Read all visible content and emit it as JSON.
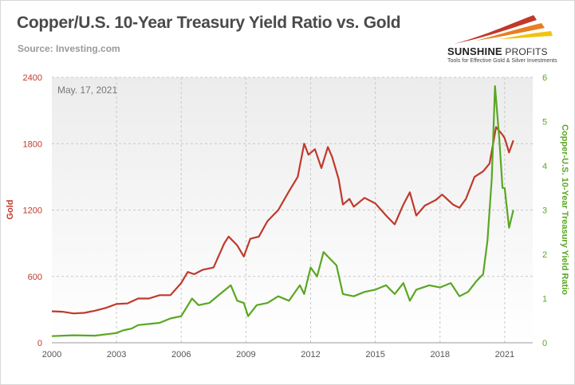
{
  "header": {
    "title": "Copper/U.S. 10-Year Treasury Yield Ratio vs. Gold",
    "source": "Source: Investing.com"
  },
  "logo": {
    "name_part1": "SUNSHINE",
    "name_part2": " PROFITS",
    "tagline": "Tools for Effective Gold & Silver Investments",
    "colors": [
      "#c0392b",
      "#e67e22",
      "#f1c40f"
    ]
  },
  "chart_data": {
    "type": "line",
    "title": "Copper/U.S. 10-Year Treasury Yield Ratio vs. Gold",
    "annotation": "May. 17, 2021",
    "x_ticks": [
      "2000",
      "2003",
      "2006",
      "2009",
      "2012",
      "2015",
      "2018",
      "2021"
    ],
    "x_range": [
      2000,
      2022.3
    ],
    "y_left": {
      "label": "Gold",
      "range": [
        0,
        2400
      ],
      "ticks": [
        "0",
        "600",
        "1200",
        "1800",
        "2400"
      ],
      "color": "#c0392b"
    },
    "y_right": {
      "label": "Copper-U.S. 10-Year Treasury Yield Ratio",
      "range": [
        0,
        6
      ],
      "ticks": [
        "0",
        "1",
        "2",
        "3",
        "4",
        "5",
        "6"
      ],
      "color": "#5aa722"
    },
    "grid": true,
    "series": [
      {
        "name": "Gold",
        "axis": "left",
        "color": "#c0392b",
        "x": [
          2000.0,
          2000.5,
          2001.0,
          2001.5,
          2002.0,
          2002.5,
          2003.0,
          2003.5,
          2004.0,
          2004.5,
          2005.0,
          2005.5,
          2006.0,
          2006.3,
          2006.6,
          2007.0,
          2007.5,
          2008.0,
          2008.2,
          2008.6,
          2008.9,
          2009.2,
          2009.6,
          2010.0,
          2010.5,
          2011.0,
          2011.4,
          2011.7,
          2011.9,
          2012.2,
          2012.5,
          2012.8,
          2013.0,
          2013.3,
          2013.5,
          2013.8,
          2014.0,
          2014.5,
          2015.0,
          2015.5,
          2015.9,
          2016.3,
          2016.6,
          2016.9,
          2017.3,
          2017.8,
          2018.1,
          2018.6,
          2018.9,
          2019.2,
          2019.6,
          2020.0,
          2020.3,
          2020.6,
          2020.9,
          2021.0,
          2021.2,
          2021.4
        ],
        "y": [
          285,
          280,
          265,
          270,
          290,
          315,
          350,
          355,
          400,
          400,
          430,
          430,
          540,
          640,
          620,
          660,
          680,
          900,
          960,
          880,
          780,
          940,
          960,
          1100,
          1200,
          1370,
          1500,
          1800,
          1700,
          1750,
          1580,
          1770,
          1680,
          1480,
          1250,
          1300,
          1230,
          1310,
          1260,
          1150,
          1070,
          1250,
          1360,
          1150,
          1240,
          1290,
          1340,
          1250,
          1220,
          1300,
          1500,
          1550,
          1620,
          1950,
          1880,
          1850,
          1720,
          1830
        ]
      },
      {
        "name": "Copper-U.S. 10-Year Treasury Yield Ratio",
        "axis": "right",
        "color": "#5aa722",
        "x": [
          2000.0,
          2001.0,
          2002.0,
          2003.0,
          2003.3,
          2003.7,
          2004.0,
          2005.0,
          2005.5,
          2006.0,
          2006.5,
          2006.8,
          2007.3,
          2007.8,
          2008.3,
          2008.6,
          2008.9,
          2009.1,
          2009.5,
          2010.0,
          2010.5,
          2011.0,
          2011.5,
          2011.7,
          2012.0,
          2012.3,
          2012.6,
          2012.9,
          2013.2,
          2013.5,
          2014.0,
          2014.5,
          2015.0,
          2015.5,
          2015.9,
          2016.3,
          2016.6,
          2016.9,
          2017.5,
          2018.0,
          2018.5,
          2018.9,
          2019.3,
          2019.7,
          2020.0,
          2020.2,
          2020.4,
          2020.55,
          2020.75,
          2020.9,
          2021.0,
          2021.2,
          2021.4
        ],
        "y": [
          0.15,
          0.17,
          0.16,
          0.22,
          0.28,
          0.32,
          0.4,
          0.45,
          0.55,
          0.6,
          1.0,
          0.85,
          0.9,
          1.1,
          1.3,
          0.95,
          0.9,
          0.6,
          0.85,
          0.9,
          1.05,
          0.95,
          1.3,
          1.1,
          1.7,
          1.5,
          2.05,
          1.9,
          1.75,
          1.1,
          1.05,
          1.15,
          1.2,
          1.3,
          1.1,
          1.35,
          0.95,
          1.2,
          1.3,
          1.25,
          1.35,
          1.05,
          1.15,
          1.4,
          1.55,
          2.3,
          3.7,
          5.8,
          4.6,
          3.5,
          3.5,
          2.6,
          3.0
        ]
      }
    ]
  }
}
